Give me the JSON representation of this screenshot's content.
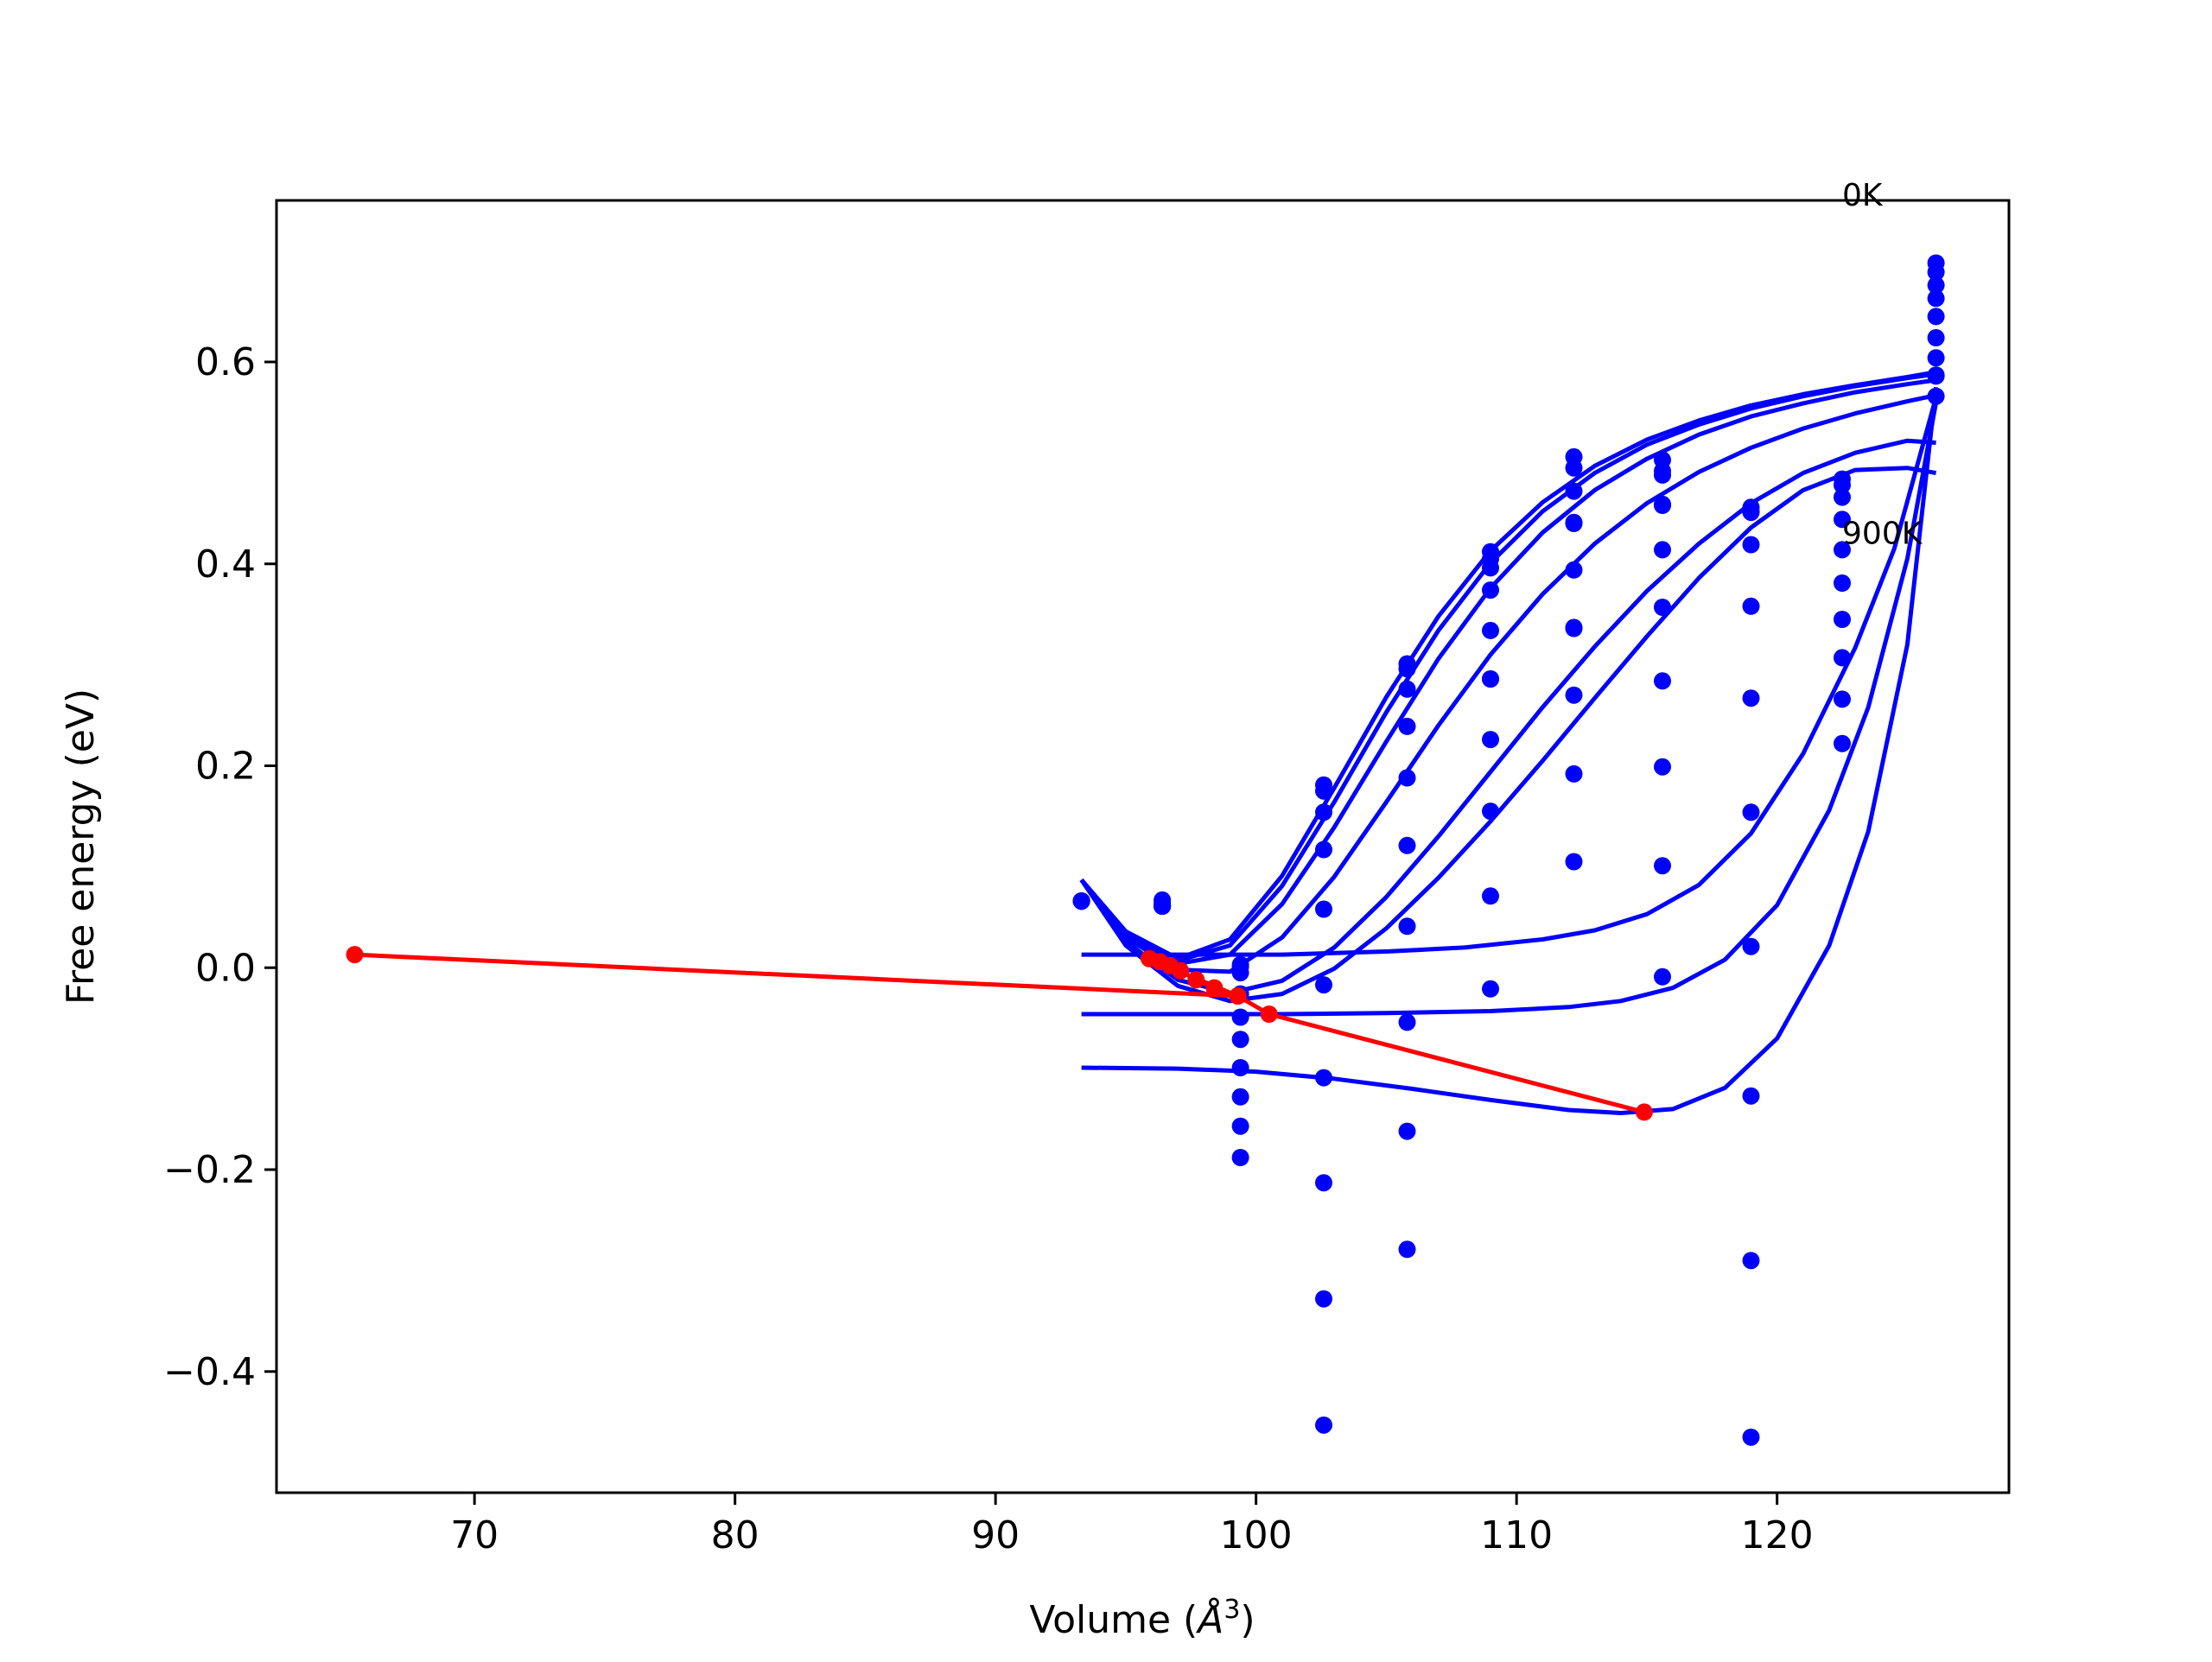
{
  "chart_data": {
    "type": "scatter",
    "title": "",
    "xlabel_prefix": "Volume (",
    "xlabel_symbol": "Å",
    "xlabel_exp": "3",
    "xlabel_suffix": ")",
    "ylabel": "Free energy (eV)",
    "xlim": [
      62.4,
      128.9
    ],
    "ylim": [
      -0.52,
      0.76
    ],
    "xticks": [
      70,
      80,
      90,
      100,
      110,
      120
    ],
    "xtick_labels": [
      "70",
      "80",
      "90",
      "100",
      "110",
      "120"
    ],
    "yticks": [
      -0.4,
      -0.2,
      0.0,
      0.2,
      0.4,
      0.6
    ],
    "ytick_labels": [
      "−0.4",
      "−0.2",
      "0.0",
      "0.2",
      "0.4",
      "0.6"
    ],
    "grid": false,
    "colors": {
      "fits": "#0000ff",
      "points": "#0000ff",
      "minima": "#ff0000"
    },
    "annotations": [
      {
        "text": "0K",
        "x": 122.5,
        "y": 0.755
      },
      {
        "text": "900K",
        "x": 122.5,
        "y": 0.42
      }
    ],
    "series": [
      {
        "values": [
          [
            93.3,
            0.066
          ],
          [
            96.4,
            0.067
          ],
          [
            99.4,
            0.003
          ],
          [
            102.6,
            0.181
          ],
          [
            105.8,
            0.301
          ],
          [
            109.0,
            0.412
          ],
          [
            112.2,
            0.506
          ],
          [
            115.6,
            0.503
          ],
          [
            119.0,
            0.456
          ],
          [
            122.5,
            0.484
          ],
          [
            126.1,
            0.698
          ]
        ]
      },
      {
        "values": [
          [
            93.3,
            0.066
          ],
          [
            96.4,
            0.064
          ],
          [
            99.4,
            0.001
          ],
          [
            102.6,
            0.175
          ],
          [
            105.8,
            0.296
          ],
          [
            109.0,
            0.405
          ],
          [
            112.2,
            0.495
          ],
          [
            115.6,
            0.492
          ],
          [
            119.0,
            0.452
          ],
          [
            122.5,
            0.478
          ],
          [
            126.1,
            0.689
          ]
        ]
      },
      {
        "values": [
          [
            93.3,
            0.066
          ],
          [
            96.4,
            0.061
          ],
          [
            99.4,
            -0.005
          ],
          [
            102.6,
            0.154
          ],
          [
            105.8,
            0.276
          ],
          [
            109.0,
            0.396
          ],
          [
            112.2,
            0.472
          ],
          [
            115.6,
            0.488
          ],
          [
            119.0,
            0.451
          ],
          [
            122.5,
            0.466
          ],
          [
            126.1,
            0.676
          ]
        ]
      },
      {
        "values": [
          [
            93.3,
            0.066
          ],
          [
            96.4,
            0.061
          ],
          [
            99.4,
            -0.026
          ],
          [
            102.6,
            0.117
          ],
          [
            105.8,
            0.239
          ],
          [
            109.0,
            0.374
          ],
          [
            112.2,
            0.441
          ],
          [
            115.6,
            0.459
          ],
          [
            119.0,
            0.419
          ],
          [
            122.5,
            0.444
          ],
          [
            126.1,
            0.663
          ]
        ]
      },
      {
        "values": [
          [
            93.3,
            0.066
          ],
          [
            96.4,
            0.061
          ],
          [
            99.4,
            -0.049
          ],
          [
            102.6,
            0.058
          ],
          [
            105.8,
            0.188
          ],
          [
            109.0,
            0.334
          ],
          [
            112.2,
            0.394
          ],
          [
            115.6,
            0.414
          ],
          [
            119.0,
            0.358
          ],
          [
            122.5,
            0.414
          ],
          [
            126.1,
            0.645
          ]
        ]
      },
      {
        "values": [
          [
            93.3,
            0.066
          ],
          [
            96.4,
            0.061
          ],
          [
            99.4,
            -0.071
          ],
          [
            102.6,
            -0.017
          ],
          [
            105.8,
            0.121
          ],
          [
            109.0,
            0.286
          ],
          [
            112.2,
            0.337
          ],
          [
            115.6,
            0.357
          ],
          [
            119.0,
            0.267
          ],
          [
            122.5,
            0.381
          ],
          [
            126.1,
            0.624
          ]
        ]
      },
      {
        "values": [
          [
            93.3,
            0.066
          ],
          [
            96.4,
            0.061
          ],
          [
            99.4,
            -0.099
          ],
          [
            102.6,
            -0.109
          ],
          [
            105.8,
            0.041
          ],
          [
            109.0,
            0.226
          ],
          [
            112.2,
            0.27
          ],
          [
            115.6,
            0.284
          ],
          [
            119.0,
            0.154
          ],
          [
            122.5,
            0.345
          ],
          [
            126.1,
            0.604
          ]
        ]
      },
      {
        "values": [
          [
            93.3,
            0.066
          ],
          [
            96.4,
            0.061
          ],
          [
            99.4,
            -0.128
          ],
          [
            102.6,
            -0.213
          ],
          [
            105.8,
            -0.054
          ],
          [
            109.0,
            0.155
          ],
          [
            112.2,
            0.192
          ],
          [
            115.6,
            0.199
          ],
          [
            119.0,
            0.021
          ],
          [
            122.5,
            0.307
          ],
          [
            126.1,
            0.586
          ]
        ]
      },
      {
        "values": [
          [
            93.3,
            0.066
          ],
          [
            96.4,
            0.061
          ],
          [
            99.4,
            -0.157
          ],
          [
            102.6,
            -0.328
          ],
          [
            105.8,
            -0.162
          ],
          [
            109.0,
            0.071
          ],
          [
            112.2,
            0.105
          ],
          [
            115.6,
            0.101
          ],
          [
            119.0,
            -0.127
          ],
          [
            122.5,
            0.266
          ],
          [
            126.1,
            0.566
          ]
        ]
      },
      {
        "values": [
          [
            93.3,
            0.066
          ],
          [
            96.4,
            0.061
          ],
          [
            99.4,
            -0.188
          ],
          [
            102.6,
            -0.453
          ],
          [
            105.8,
            -0.279
          ],
          [
            109.0,
            -0.021
          ],
          [
            112.2,
            0.44
          ],
          [
            115.6,
            -0.009
          ],
          [
            119.0,
            -0.29
          ],
          [
            122.5,
            0.222
          ],
          [
            126.1,
            0.587
          ]
        ]
      },
      {
        "values": [
          [
            119.0,
            -0.465
          ],
          [
            112.2,
            0.336
          ],
          [
            109.0,
            0.286
          ],
          [
            115.6,
            0.458
          ]
        ]
      }
    ],
    "fit_curves": [
      {
        "values": [
          [
            93.3,
            0.087
          ],
          [
            95.0,
            0.036
          ],
          [
            97.0,
            0.009
          ],
          [
            99.0,
            0.028
          ],
          [
            101.0,
            0.091
          ],
          [
            103.0,
            0.178
          ],
          [
            105.0,
            0.268
          ],
          [
            107.0,
            0.348
          ],
          [
            109.0,
            0.413
          ],
          [
            111.0,
            0.461
          ],
          [
            113.0,
            0.497
          ],
          [
            115.0,
            0.523
          ],
          [
            117.0,
            0.542
          ],
          [
            119.0,
            0.557
          ],
          [
            121.0,
            0.568
          ],
          [
            123.0,
            0.577
          ],
          [
            125.0,
            0.585
          ],
          [
            126.1,
            0.59
          ]
        ]
      },
      {
        "values": [
          [
            93.3,
            0.087
          ],
          [
            95.0,
            0.035
          ],
          [
            97.0,
            0.007
          ],
          [
            99.0,
            0.022
          ],
          [
            101.0,
            0.081
          ],
          [
            103.0,
            0.164
          ],
          [
            105.0,
            0.253
          ],
          [
            107.0,
            0.334
          ],
          [
            109.0,
            0.401
          ],
          [
            111.0,
            0.452
          ],
          [
            113.0,
            0.49
          ],
          [
            115.0,
            0.518
          ],
          [
            117.0,
            0.538
          ],
          [
            119.0,
            0.554
          ],
          [
            121.0,
            0.566
          ],
          [
            123.0,
            0.576
          ],
          [
            125.0,
            0.584
          ],
          [
            126.1,
            0.588
          ]
        ]
      },
      {
        "values": [
          [
            93.3,
            0.087
          ],
          [
            95.0,
            0.033
          ],
          [
            97.0,
            0.004
          ],
          [
            99.0,
            0.013
          ],
          [
            101.0,
            0.063
          ],
          [
            103.0,
            0.139
          ],
          [
            105.0,
            0.224
          ],
          [
            107.0,
            0.306
          ],
          [
            109.0,
            0.376
          ],
          [
            111.0,
            0.431
          ],
          [
            113.0,
            0.473
          ],
          [
            115.0,
            0.504
          ],
          [
            117.0,
            0.528
          ],
          [
            119.0,
            0.546
          ],
          [
            121.0,
            0.559
          ],
          [
            123.0,
            0.57
          ],
          [
            125.0,
            0.578
          ],
          [
            126.1,
            0.582
          ]
        ]
      },
      {
        "values": [
          [
            93.3,
            0.087
          ],
          [
            95.0,
            0.03
          ],
          [
            97.0,
            -0.002
          ],
          [
            99.0,
            -0.004
          ],
          [
            101.0,
            0.03
          ],
          [
            103.0,
            0.09
          ],
          [
            105.0,
            0.164
          ],
          [
            107.0,
            0.24
          ],
          [
            109.0,
            0.31
          ],
          [
            111.0,
            0.37
          ],
          [
            113.0,
            0.42
          ],
          [
            115.0,
            0.46
          ],
          [
            117.0,
            0.491
          ],
          [
            119.0,
            0.515
          ],
          [
            121.0,
            0.534
          ],
          [
            123.0,
            0.549
          ],
          [
            125.0,
            0.561
          ],
          [
            126.1,
            0.567
          ]
        ]
      },
      {
        "values": [
          [
            93.3,
            0.087
          ],
          [
            95.0,
            0.026
          ],
          [
            97.0,
            -0.012
          ],
          [
            99.0,
            -0.025
          ],
          [
            101.0,
            -0.013
          ],
          [
            103.0,
            0.02
          ],
          [
            105.0,
            0.07
          ],
          [
            107.0,
            0.13
          ],
          [
            109.0,
            0.194
          ],
          [
            111.0,
            0.258
          ],
          [
            113.0,
            0.318
          ],
          [
            115.0,
            0.373
          ],
          [
            117.0,
            0.42
          ],
          [
            119.0,
            0.46
          ],
          [
            121.0,
            0.49
          ],
          [
            123.0,
            0.51
          ],
          [
            125.0,
            0.522
          ],
          [
            126.1,
            0.52
          ]
        ]
      },
      {
        "values": [
          [
            93.3,
            0.087
          ],
          [
            95.0,
            0.022
          ],
          [
            97.0,
            -0.018
          ],
          [
            99.0,
            -0.033
          ],
          [
            101.0,
            -0.026
          ],
          [
            103.0,
            -0.001
          ],
          [
            105.0,
            0.039
          ],
          [
            107.0,
            0.089
          ],
          [
            109.0,
            0.145
          ],
          [
            111.0,
            0.205
          ],
          [
            113.0,
            0.267
          ],
          [
            115.0,
            0.328
          ],
          [
            117.0,
            0.386
          ],
          [
            119.0,
            0.436
          ],
          [
            121.0,
            0.473
          ],
          [
            123.0,
            0.493
          ],
          [
            125.0,
            0.495
          ],
          [
            126.1,
            0.49
          ]
        ]
      },
      {
        "values": [
          [
            93.3,
            0.013
          ],
          [
            97.0,
            0.013
          ],
          [
            101.0,
            0.013
          ],
          [
            105.0,
            0.016
          ],
          [
            108.0,
            0.02
          ],
          [
            111.0,
            0.028
          ],
          [
            113.0,
            0.037
          ],
          [
            115.0,
            0.053
          ],
          [
            117.0,
            0.082
          ],
          [
            119.0,
            0.133
          ],
          [
            121.0,
            0.212
          ],
          [
            123.0,
            0.317
          ],
          [
            124.5,
            0.415
          ],
          [
            126.1,
            0.565
          ]
        ]
      },
      {
        "values": [
          [
            93.3,
            -0.046
          ],
          [
            97.0,
            -0.046
          ],
          [
            101.0,
            -0.046
          ],
          [
            105.0,
            -0.045
          ],
          [
            109.0,
            -0.043
          ],
          [
            112.0,
            -0.039
          ],
          [
            114.0,
            -0.033
          ],
          [
            116.0,
            -0.02
          ],
          [
            118.0,
            0.008
          ],
          [
            120.0,
            0.062
          ],
          [
            122.0,
            0.156
          ],
          [
            123.5,
            0.258
          ],
          [
            125.0,
            0.405
          ],
          [
            126.1,
            0.56
          ]
        ]
      },
      {
        "values": [
          [
            93.3,
            -0.099
          ],
          [
            97.0,
            -0.1
          ],
          [
            100.0,
            -0.103
          ],
          [
            103.0,
            -0.11
          ],
          [
            106.0,
            -0.12
          ],
          [
            109.0,
            -0.131
          ],
          [
            112.0,
            -0.141
          ],
          [
            114.0,
            -0.144
          ],
          [
            116.0,
            -0.14
          ],
          [
            118.0,
            -0.119
          ],
          [
            120.0,
            -0.07
          ],
          [
            122.0,
            0.022
          ],
          [
            123.5,
            0.135
          ],
          [
            125.0,
            0.32
          ],
          [
            126.1,
            0.575
          ]
        ]
      }
    ],
    "minima_path": {
      "values": [
        [
          65.4,
          0.013
        ],
        [
          99.3,
          -0.028
        ],
        [
          95.9,
          0.009
        ],
        [
          96.3,
          0.006
        ],
        [
          96.7,
          0.002
        ],
        [
          97.1,
          -0.003
        ],
        [
          97.7,
          -0.012
        ],
        [
          98.4,
          -0.02
        ],
        [
          99.3,
          -0.028
        ],
        [
          100.5,
          -0.046
        ],
        [
          114.9,
          -0.143
        ]
      ]
    }
  }
}
